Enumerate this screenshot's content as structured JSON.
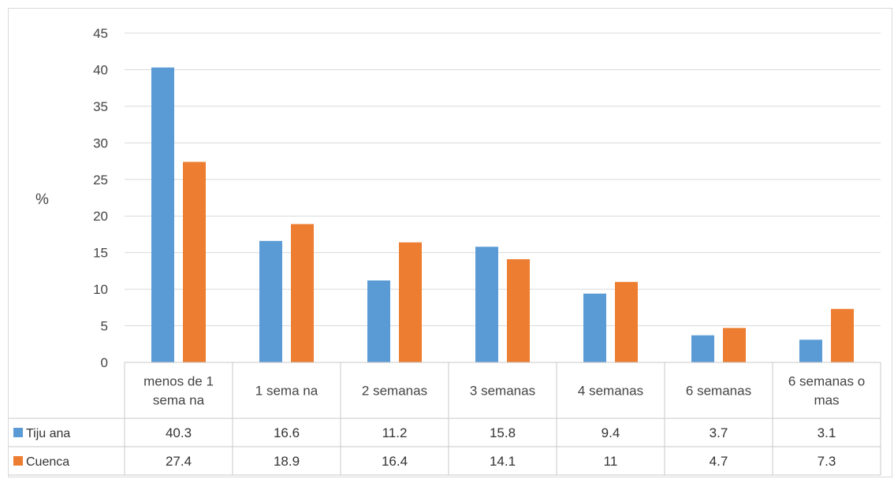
{
  "chart_data": {
    "type": "bar",
    "ylabel": "%",
    "ylim": [
      0,
      45
    ],
    "yticks": [
      0,
      5,
      10,
      15,
      20,
      25,
      30,
      35,
      40,
      45
    ],
    "grid": true,
    "legend": "data-table",
    "categories": [
      [
        "menos de 1",
        "sema na"
      ],
      [
        "1 sema na"
      ],
      [
        "2 semanas"
      ],
      [
        "3 semanas"
      ],
      [
        "4 semanas"
      ],
      [
        "6 semanas"
      ],
      [
        "6 semanas o",
        "mas"
      ]
    ],
    "series": [
      {
        "name": "Tiju ana",
        "color": "#5b9bd5",
        "values": [
          40.3,
          16.6,
          11.2,
          15.8,
          9.4,
          3.7,
          3.1
        ]
      },
      {
        "name": "Cuenca",
        "color": "#ed7d31",
        "values": [
          27.4,
          18.9,
          16.4,
          14.1,
          11,
          4.7,
          7.3
        ]
      }
    ]
  }
}
